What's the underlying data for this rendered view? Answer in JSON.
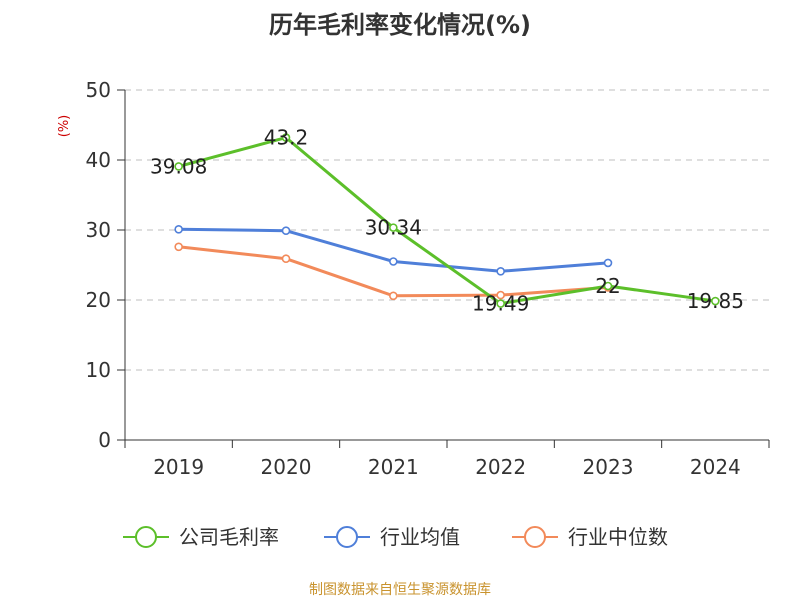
{
  "chart_data": {
    "type": "line",
    "title": "历年毛利率变化情况(%)",
    "ylabel": "(%)",
    "categories": [
      "2019",
      "2020",
      "2021",
      "2022",
      "2023",
      "2024"
    ],
    "yticks": [
      "0",
      "10",
      "20",
      "30",
      "40",
      "50"
    ],
    "ylim": [
      0,
      50
    ],
    "grid": true,
    "legend_position": "bottom",
    "series": [
      {
        "name": "公司毛利率",
        "color": "#5cbf2a",
        "values": [
          39.08,
          43.2,
          30.34,
          19.49,
          22,
          19.85
        ],
        "labels": [
          "39.08",
          "43.2",
          "30.34",
          "19.49",
          "22",
          "19.85"
        ]
      },
      {
        "name": "行业均值",
        "color": "#4f7fd9",
        "values": [
          30.1,
          29.9,
          25.5,
          24.1,
          25.3,
          null
        ]
      },
      {
        "name": "行业中位数",
        "color": "#f28a5a",
        "values": [
          27.6,
          25.9,
          20.6,
          20.7,
          21.8,
          null
        ]
      }
    ]
  },
  "footer": {
    "source": "制图数据来自恒生聚源数据库"
  }
}
